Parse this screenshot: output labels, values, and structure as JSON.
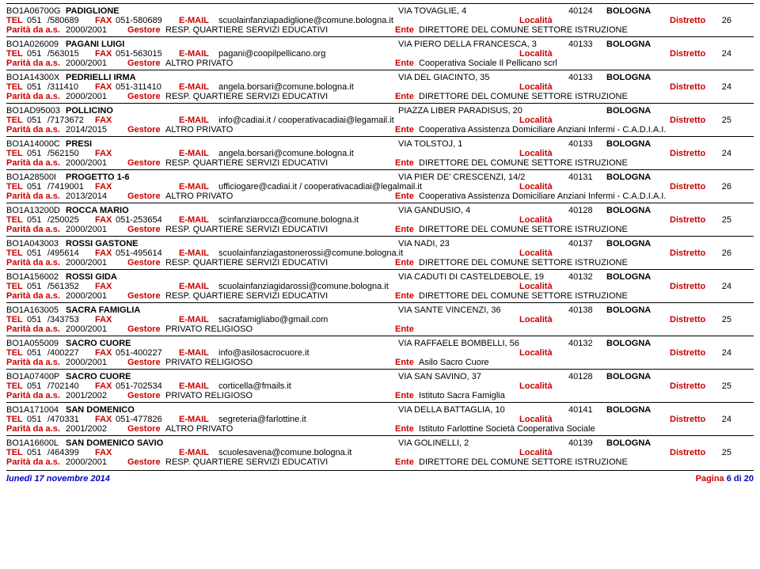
{
  "labels": {
    "tel": "TEL",
    "fax": "FAX",
    "email": "E-MAIL",
    "localita": "Località",
    "distretto": "Distretto",
    "parita": "Parità da a.s.",
    "gestore": "Gestore",
    "ente": "Ente",
    "pagina": "Pagina"
  },
  "footer": {
    "date": "lunedì 17 novembre 2014",
    "page": "6 di 20"
  },
  "records": [
    {
      "code": "BO1A06700G",
      "name": "PADIGLIONE",
      "address": "VIA TOVAGLIE, 4",
      "cap": "40124",
      "city": "BOLOGNA",
      "tel_prefix": "051",
      "tel": "/580689",
      "fax": "051-580689",
      "email": "scuolainfanziapadiglione@comune.bologna.it",
      "distretto": "26",
      "parita": "2000/2001",
      "gestore": "RESP. QUARTIERE SERVIZI EDUCATIVI",
      "ente": "DIRETTORE DEL COMUNE SETTORE ISTRUZIONE"
    },
    {
      "code": "BO1A026009",
      "name": "PAGANI LUIGI",
      "address": "VIA PIERO DELLA FRANCESCA, 3",
      "cap": "40133",
      "city": "BOLOGNA",
      "tel_prefix": "051",
      "tel": "/563015",
      "fax": "051-563015",
      "email": "pagani@coopilpellicano.org",
      "distretto": "24",
      "parita": "2000/2001",
      "gestore": "ALTRO PRIVATO",
      "ente": "Cooperativa Sociale Il Pellicano scrl"
    },
    {
      "code": "BO1A14300X",
      "name": "PEDRIELLI IRMA",
      "address": "VIA DEL GIACINTO, 35",
      "cap": "40133",
      "city": "BOLOGNA",
      "tel_prefix": "051",
      "tel": "/311410",
      "fax": "051-311410",
      "email": "angela.borsari@comune.bologna.it",
      "distretto": "24",
      "parita": "2000/2001",
      "gestore": "RESP. QUARTIERE SERVIZI EDUCATIVI",
      "ente": "DIRETTORE DEL COMUNE SETTORE ISTRUZIONE"
    },
    {
      "code": "BO1AD95003",
      "name": "POLLICINO",
      "address": "PIAZZA LIBER PARADISUS, 20",
      "cap": "",
      "city": "BOLOGNA",
      "tel_prefix": "051",
      "tel": "/7173672",
      "fax": "",
      "email": "info@cadiai.it  /  cooperativacadiai@legamail.it",
      "distretto": "25",
      "parita": "2014/2015",
      "gestore": "ALTRO PRIVATO",
      "ente": "Cooperativa Assistenza Domiciliare Anziani Infermi - C.A.D.I.A.I."
    },
    {
      "code": "BO1A14000C",
      "name": "PRESI",
      "address": "VIA TOLSTOJ, 1",
      "cap": "40133",
      "city": "BOLOGNA",
      "tel_prefix": "051",
      "tel": "/562150",
      "fax": "",
      "email": "angela.borsari@comune.bologna.it",
      "distretto": "24",
      "parita": "2000/2001",
      "gestore": "RESP. QUARTIERE SERVIZI EDUCATIVI",
      "ente": "DIRETTORE DEL COMUNE SETTORE ISTRUZIONE"
    },
    {
      "code": "BO1A28500I",
      "name": "PROGETTO 1-6",
      "address": "VIA PIER DE' CRESCENZI, 14/2",
      "cap": "40131",
      "city": "BOLOGNA",
      "tel_prefix": "051",
      "tel": "/7419001",
      "fax": "",
      "email": "ufficiogare@cadiai.it  /  cooperativacadiai@legalmail.it",
      "distretto": "26",
      "parita": "2013/2014",
      "gestore": "ALTRO PRIVATO",
      "ente": "Cooperativa Assistenza Domiciliare Anziani Infermi - C.A.D.I.A.I."
    },
    {
      "code": "BO1A13200D",
      "name": "ROCCA MARIO",
      "address": "VIA GANDUSIO, 4",
      "cap": "40128",
      "city": "BOLOGNA",
      "tel_prefix": "051",
      "tel": "/250025",
      "fax": "051-253654",
      "email": "scinfanziarocca@comune.bologna.it",
      "distretto": "25",
      "parita": "2000/2001",
      "gestore": "RESP. QUARTIERE SERVIZI EDUCATIVI",
      "ente": "DIRETTORE DEL COMUNE SETTORE ISTRUZIONE"
    },
    {
      "code": "BO1A043003",
      "name": "ROSSI GASTONE",
      "address": "VIA NADI, 23",
      "cap": "40137",
      "city": "BOLOGNA",
      "tel_prefix": "051",
      "tel": "/495614",
      "fax": "051-495614",
      "email": "scuolainfanziagastonerossi@comune.bologna.it",
      "distretto": "26",
      "parita": "2000/2001",
      "gestore": "RESP. QUARTIERE SERVIZI EDUCATIVI",
      "ente": "DIRETTORE DEL COMUNE SETTORE ISTRUZIONE"
    },
    {
      "code": "BO1A156002",
      "name": "ROSSI GIDA",
      "address": "VIA CADUTI DI CASTELDEBOLE, 19",
      "cap": "40132",
      "city": "BOLOGNA",
      "tel_prefix": "051",
      "tel": "/561352",
      "fax": "",
      "email": "scuolainfanziagidarossi@comune.bologna.it",
      "distretto": "24",
      "parita": "2000/2001",
      "gestore": "RESP. QUARTIERE SERVIZI EDUCATIVI",
      "ente": "DIRETTORE DEL COMUNE SETTORE ISTRUZIONE"
    },
    {
      "code": "BO1A163005",
      "name": "SACRA FAMIGLIA",
      "address": "VIA SANTE VINCENZI, 36",
      "cap": "40138",
      "city": "BOLOGNA",
      "tel_prefix": "051",
      "tel": "/343753",
      "fax": "",
      "email": "sacrafamigliabo@gmail.com",
      "distretto": "25",
      "parita": "2000/2001",
      "gestore": "PRIVATO RELIGIOSO",
      "ente": ""
    },
    {
      "code": "BO1A055009",
      "name": "SACRO CUORE",
      "address": "VIA RAFFAELE BOMBELLI, 56",
      "cap": "40132",
      "city": "BOLOGNA",
      "tel_prefix": "051",
      "tel": "/400227",
      "fax": "051-400227",
      "email": "info@asilosacrocuore.it",
      "distretto": "24",
      "parita": "2000/2001",
      "gestore": "PRIVATO RELIGIOSO",
      "ente": "Asilo Sacro Cuore"
    },
    {
      "code": "BO1A07400P",
      "name": "SACRO CUORE",
      "address": "VIA SAN SAVINO, 37",
      "cap": "40128",
      "city": "BOLOGNA",
      "tel_prefix": "051",
      "tel": "/702140",
      "fax": "051-702534",
      "email": "corticella@fmails.it",
      "distretto": "25",
      "parita": "2001/2002",
      "gestore": "PRIVATO RELIGIOSO",
      "ente": "Istituto Sacra Famiglia"
    },
    {
      "code": "BO1A171004",
      "name": "SAN DOMENICO",
      "address": "VIA DELLA BATTAGLIA, 10",
      "cap": "40141",
      "city": "BOLOGNA",
      "tel_prefix": "051",
      "tel": "/470331",
      "fax": "051-477826",
      "email": "segreteria@farlottine.it",
      "distretto": "24",
      "parita": "2001/2002",
      "gestore": "ALTRO PRIVATO",
      "ente": "Istituto Farlottine Società Cooperativa Sociale"
    },
    {
      "code": "BO1A16600L",
      "name": "SAN DOMENICO SAVIO",
      "address": "VIA GOLINELLI, 2",
      "cap": "40139",
      "city": "BOLOGNA",
      "tel_prefix": "051",
      "tel": "/464399",
      "fax": "",
      "email": "scuolesavena@comune.bologna.it",
      "distretto": "25",
      "parita": "2000/2001",
      "gestore": "RESP. QUARTIERE SERVIZI EDUCATIVI",
      "ente": "DIRETTORE DEL COMUNE SETTORE ISTRUZIONE"
    }
  ]
}
